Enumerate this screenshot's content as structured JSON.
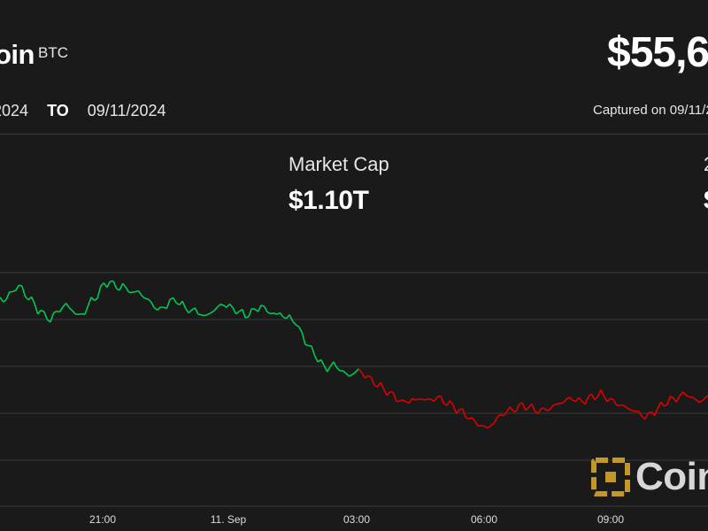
{
  "header": {
    "coin_name": "oin",
    "coin_symbol": "BTC",
    "price": "$55,6",
    "date_from": "2024",
    "date_to_label": "TO",
    "date_to": "09/11/2024",
    "captured": "Captured on 09/11/2"
  },
  "stats": {
    "market_cap_label": "Market Cap",
    "market_cap_value": "$1.10T",
    "right_label": "2",
    "right_value": "$"
  },
  "watermark": {
    "text": "Coin"
  },
  "colors": {
    "up": "#00c853",
    "down": "#e00000",
    "background": "#1a1a1a",
    "grid": "#3a3a3a",
    "axis_text": "#dddddd"
  },
  "chart_data": {
    "type": "line",
    "title": "",
    "xlabel": "",
    "ylabel": "",
    "x_ticks": [
      "21:00",
      "11. Sep",
      "03:00",
      "06:00",
      "09:00"
    ],
    "x_tick_times": [
      "10 Sep 21:00",
      "11 Sep 00:00",
      "11 Sep 03:00",
      "11 Sep 06:00",
      "11 Sep 09:00"
    ],
    "grid": true,
    "reference_price_index": 94,
    "series": [
      {
        "values": [
          336,
          340,
          338,
          332,
          330,
          325,
          323,
          327,
          332,
          336,
          340,
          344,
          350,
          352,
          356,
          358,
          362,
          357,
          352,
          350,
          347,
          344,
          348,
          350,
          354,
          357,
          356,
          352,
          345,
          340,
          338,
          333,
          327,
          322,
          320,
          318,
          322,
          324,
          325,
          323,
          326,
          328,
          330,
          331,
          329,
          333,
          336,
          339,
          343,
          345,
          349,
          351,
          347,
          344,
          341,
          340,
          338,
          343,
          345,
          348,
          350,
          352,
          350,
          353,
          355,
          358,
          356,
          353,
          350,
          348,
          346,
          343,
          345,
          347,
          349,
          350,
          353,
          354,
          356,
          355,
          353,
          350,
          348,
          346,
          349,
          351,
          353,
          355,
          356,
          353,
          357,
          360,
          358,
          362,
          364,
          372,
          378,
          385,
          390,
          396,
          400,
          405,
          410,
          415,
          416,
          414,
          412,
          414,
          417,
          420,
          423,
          425,
          422,
          420,
          419,
          421,
          424,
          426,
          430,
          432,
          435,
          437,
          440,
          442,
          445,
          447,
          450,
          452,
          455,
          454,
          453,
          451,
          453,
          451,
          450,
          451,
          453,
          452,
          450,
          449,
          451,
          453,
          455,
          457,
          459,
          462,
          464,
          466,
          469,
          471,
          475,
          477,
          479,
          481,
          483,
          484,
          480,
          477,
          473,
          470,
          467,
          465,
          464,
          463,
          461,
          460,
          458,
          459,
          460,
          461,
          463,
          464,
          464,
          463,
          462,
          461,
          459,
          457,
          455,
          454,
          452,
          451,
          450,
          452,
          453,
          454,
          452,
          450,
          449,
          448,
          446,
          445,
          448,
          450,
          452,
          454,
          456,
          457,
          459,
          461,
          462,
          463,
          465,
          467,
          469,
          471,
          470,
          467,
          465,
          462,
          459,
          456,
          454,
          452,
          451,
          450,
          448,
          446,
          445,
          447,
          450,
          452,
          454,
          452,
          450,
          449
        ]
      }
    ]
  }
}
